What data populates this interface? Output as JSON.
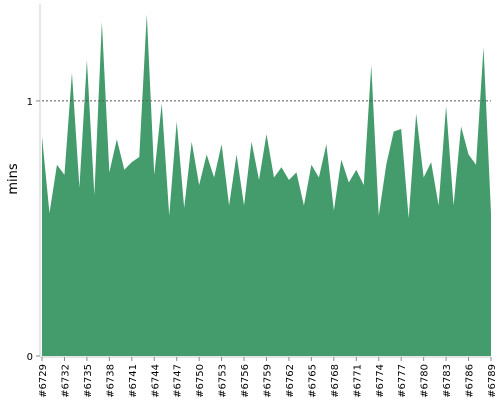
{
  "chart_data": {
    "type": "area",
    "title": "",
    "xlabel": "",
    "ylabel": "mins",
    "ylim": [
      0,
      1.38
    ],
    "yticks": [
      0,
      1
    ],
    "reference_line": {
      "y": 1,
      "style": "dotted"
    },
    "grid": false,
    "legend": "none",
    "x": [
      "#6729",
      "#6730",
      "#6731",
      "#6732",
      "#6733",
      "#6734",
      "#6735",
      "#6736",
      "#6737",
      "#6738",
      "#6739",
      "#6740",
      "#6741",
      "#6742",
      "#6743",
      "#6744",
      "#6745",
      "#6746",
      "#6747",
      "#6748",
      "#6749",
      "#6750",
      "#6751",
      "#6752",
      "#6753",
      "#6754",
      "#6755",
      "#6756",
      "#6757",
      "#6758",
      "#6759",
      "#6760",
      "#6761",
      "#6762",
      "#6763",
      "#6764",
      "#6765",
      "#6766",
      "#6767",
      "#6768",
      "#6769",
      "#6770",
      "#6771",
      "#6772",
      "#6773",
      "#6774",
      "#6775",
      "#6776",
      "#6777",
      "#6778",
      "#6779",
      "#6780",
      "#6781",
      "#6782",
      "#6783",
      "#6784",
      "#6785",
      "#6786",
      "#6787",
      "#6788",
      "#6789"
    ],
    "xtick_labels": [
      "#6729",
      "#6732",
      "#6735",
      "#6738",
      "#6741",
      "#6744",
      "#6747",
      "#6750",
      "#6753",
      "#6756",
      "#6759",
      "#6762",
      "#6765",
      "#6768",
      "#6771",
      "#6774",
      "#6777",
      "#6780",
      "#6783",
      "#6786",
      "#6789"
    ],
    "series": [
      {
        "color": "#449b6c",
        "values": [
          0.86,
          0.56,
          0.75,
          0.71,
          1.11,
          0.66,
          1.16,
          0.63,
          1.31,
          0.72,
          0.85,
          0.73,
          0.76,
          0.78,
          1.34,
          0.71,
          0.99,
          0.55,
          0.92,
          0.58,
          0.84,
          0.67,
          0.79,
          0.7,
          0.83,
          0.59,
          0.79,
          0.59,
          0.84,
          0.69,
          0.87,
          0.7,
          0.74,
          0.69,
          0.72,
          0.59,
          0.75,
          0.7,
          0.83,
          0.57,
          0.77,
          0.68,
          0.73,
          0.67,
          1.14,
          0.55,
          0.75,
          0.88,
          0.89,
          0.54,
          0.95,
          0.7,
          0.76,
          0.59,
          0.98,
          0.59,
          0.9,
          0.79,
          0.75,
          1.21,
          0.56
        ]
      }
    ]
  }
}
